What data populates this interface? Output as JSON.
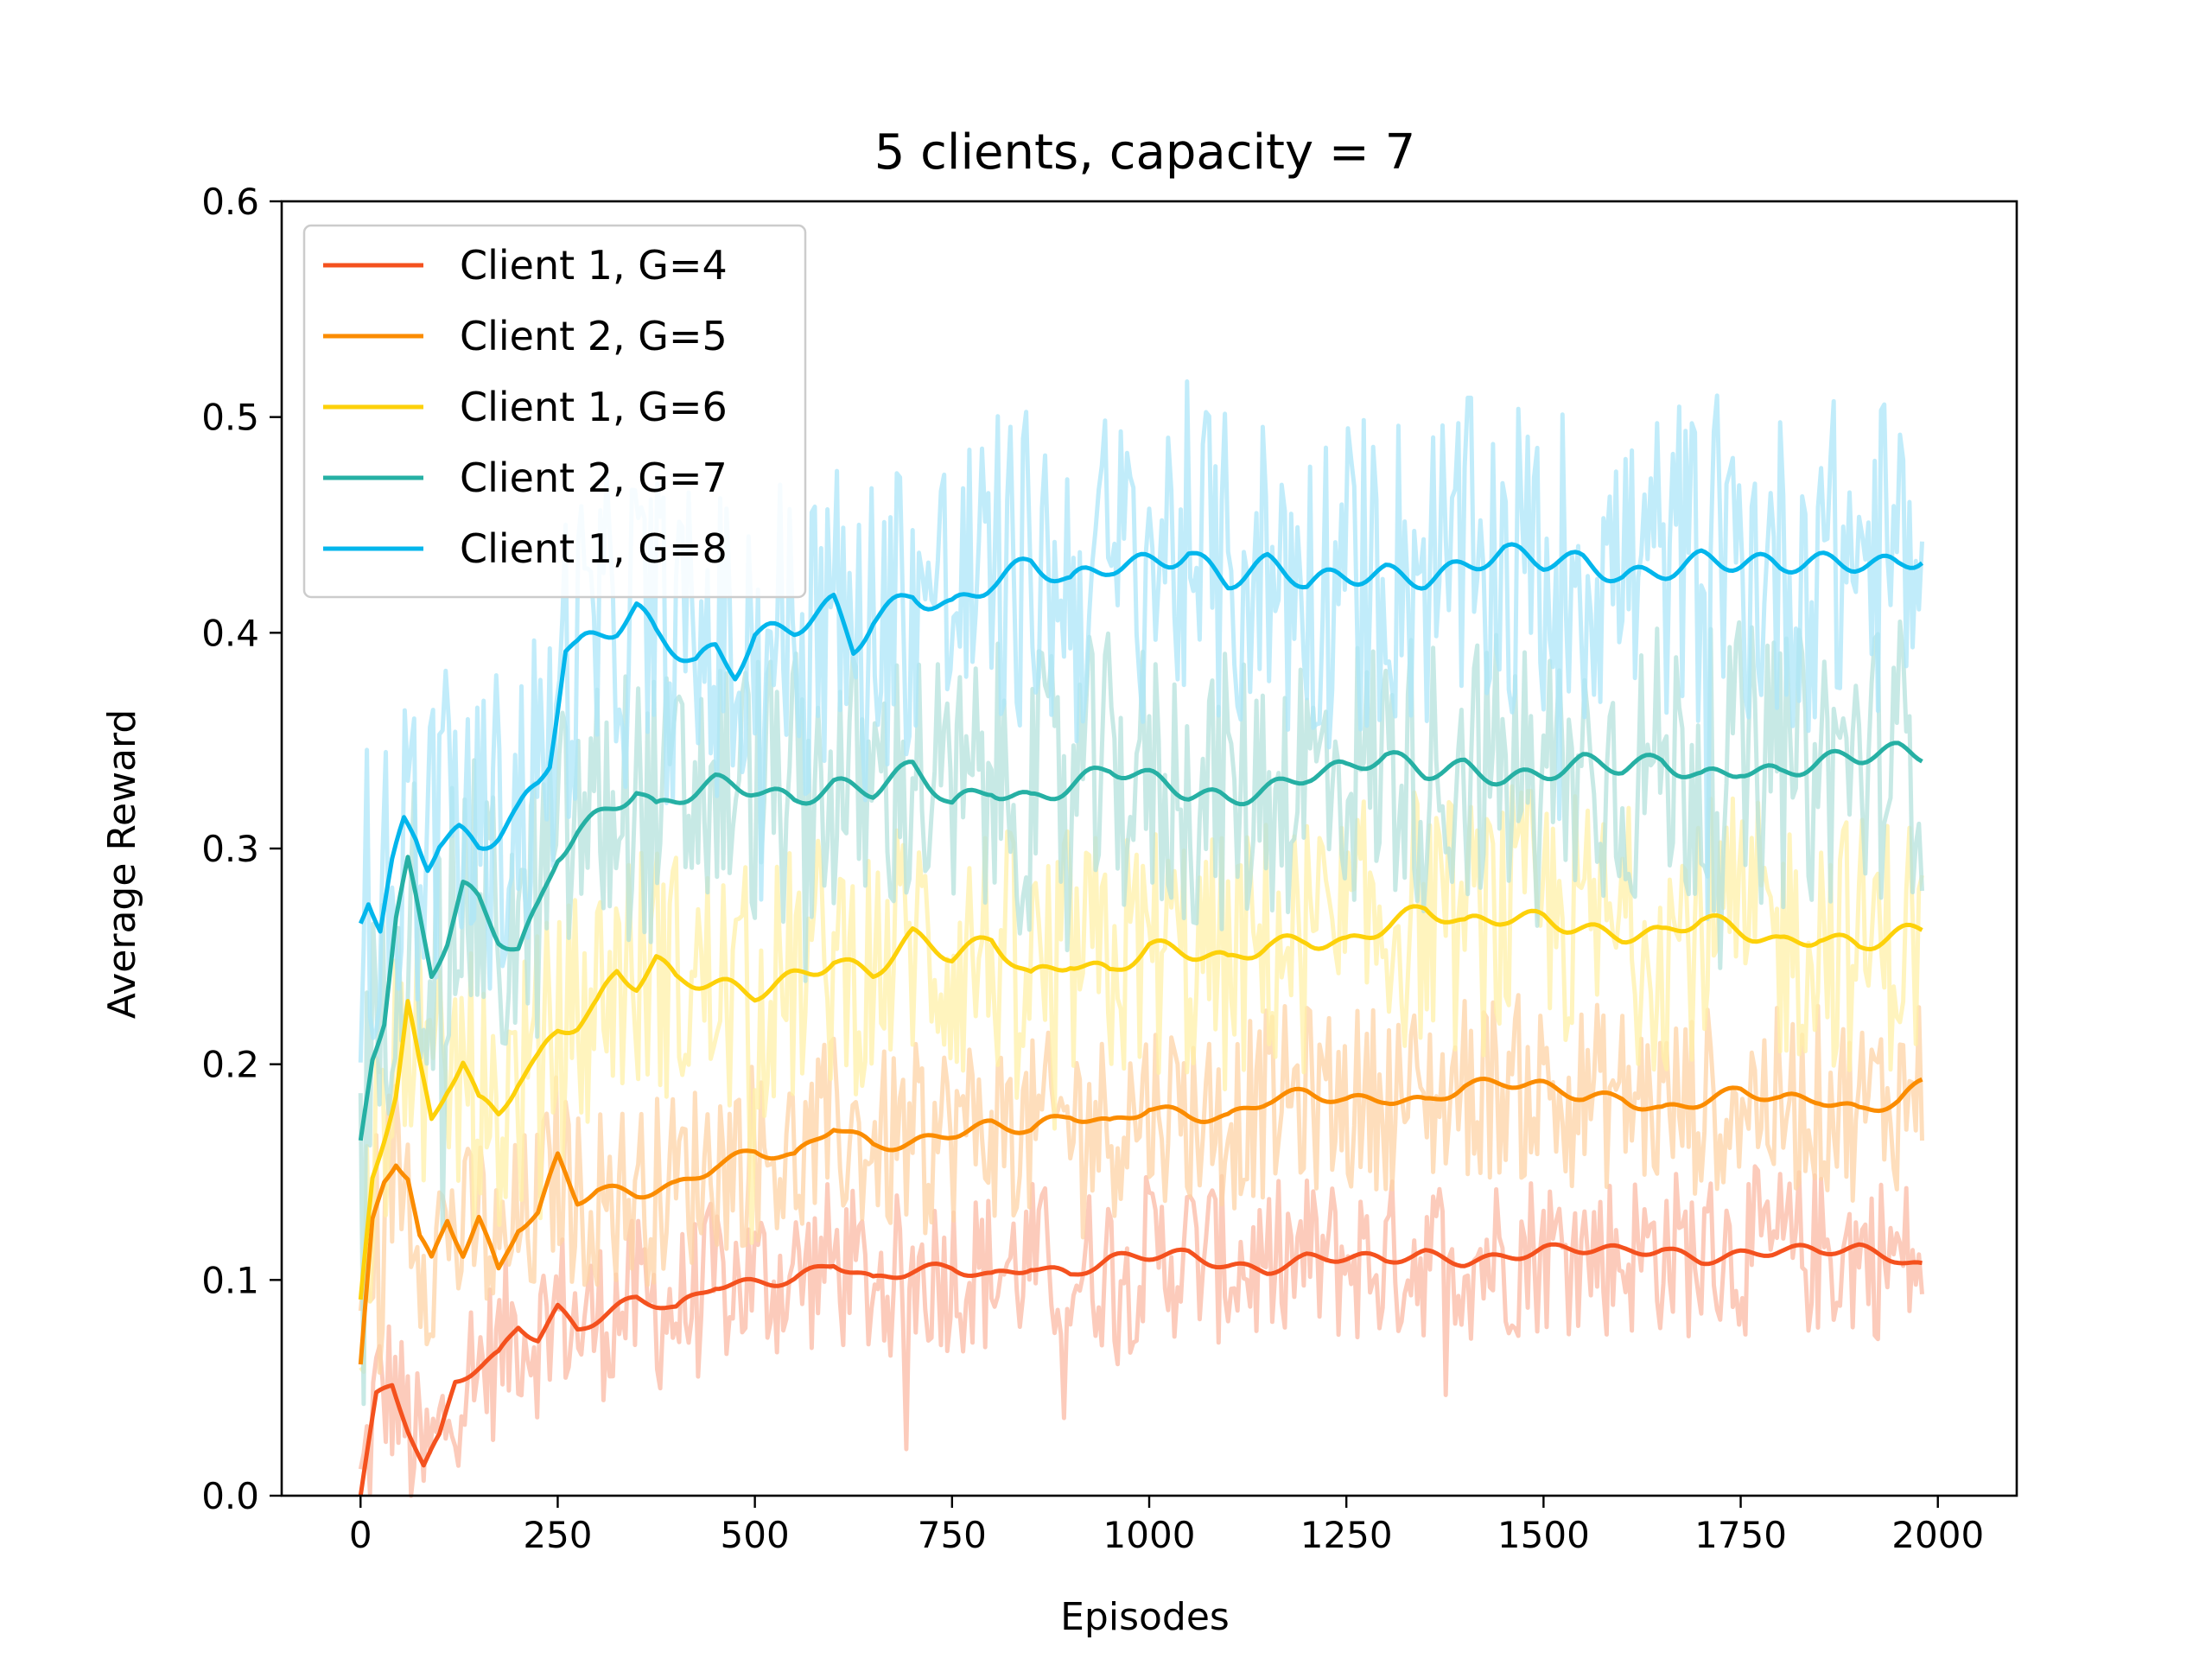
{
  "chart_data": {
    "type": "line",
    "title": "5 clients, capacity = 7",
    "xlabel": "Episodes",
    "ylabel": "Average Reward",
    "xlim": [
      -100,
      2100
    ],
    "ylim": [
      0.0,
      0.6
    ],
    "xticks": [
      0,
      250,
      500,
      750,
      1000,
      1250,
      1500,
      1750,
      2000
    ],
    "xtick_labels": [
      "0",
      "250",
      "500",
      "750",
      "1000",
      "1250",
      "1500",
      "1750",
      "2000"
    ],
    "yticks": [
      0.0,
      0.1,
      0.2,
      0.3,
      0.4,
      0.5,
      0.6
    ],
    "ytick_labels": [
      "0.0",
      "0.1",
      "0.2",
      "0.3",
      "0.4",
      "0.5",
      "0.6"
    ],
    "legend_position": "upper-left",
    "series": [
      {
        "name": "Client 1, G=4",
        "color": "#f4511e",
        "band_color": "#fbb9a4",
        "noise": 0.018,
        "x": [
          0,
          20,
          40,
          60,
          80,
          100,
          120,
          150,
          175,
          200,
          225,
          250,
          275,
          300,
          350,
          400,
          450,
          500,
          550,
          600,
          650,
          700,
          750,
          800,
          850,
          900,
          950,
          1000,
          1050,
          1100,
          1150,
          1200,
          1250,
          1300,
          1350,
          1400,
          1450,
          1500,
          1550,
          1600,
          1650,
          1700,
          1750,
          1800,
          1850,
          1900,
          1950,
          1980
        ],
        "y": [
          0.0,
          0.045,
          0.05,
          0.03,
          0.012,
          0.025,
          0.052,
          0.06,
          0.066,
          0.08,
          0.075,
          0.088,
          0.078,
          0.082,
          0.09,
          0.085,
          0.098,
          0.1,
          0.102,
          0.108,
          0.098,
          0.103,
          0.106,
          0.103,
          0.108,
          0.102,
          0.108,
          0.11,
          0.112,
          0.108,
          0.106,
          0.11,
          0.109,
          0.108,
          0.112,
          0.11,
          0.112,
          0.114,
          0.113,
          0.112,
          0.114,
          0.111,
          0.113,
          0.114,
          0.112,
          0.113,
          0.11,
          0.107
        ]
      },
      {
        "name": "Client 2, G=5",
        "color": "#fb8c00",
        "band_color": "#fdd3a6",
        "noise": 0.02,
        "x": [
          0,
          15,
          30,
          45,
          60,
          75,
          90,
          110,
          130,
          150,
          175,
          200,
          225,
          250,
          275,
          300,
          350,
          400,
          450,
          500,
          550,
          600,
          650,
          700,
          750,
          800,
          850,
          900,
          950,
          1000,
          1050,
          1100,
          1150,
          1200,
          1250,
          1300,
          1350,
          1400,
          1450,
          1500,
          1550,
          1600,
          1650,
          1700,
          1750,
          1800,
          1850,
          1900,
          1950,
          1980
        ],
        "y": [
          0.057,
          0.125,
          0.145,
          0.155,
          0.148,
          0.12,
          0.11,
          0.13,
          0.115,
          0.13,
          0.105,
          0.125,
          0.13,
          0.155,
          0.135,
          0.14,
          0.14,
          0.145,
          0.155,
          0.16,
          0.155,
          0.17,
          0.162,
          0.165,
          0.17,
          0.172,
          0.168,
          0.175,
          0.172,
          0.182,
          0.178,
          0.175,
          0.182,
          0.185,
          0.183,
          0.186,
          0.184,
          0.19,
          0.19,
          0.188,
          0.185,
          0.186,
          0.18,
          0.183,
          0.186,
          0.182,
          0.184,
          0.18,
          0.185,
          0.192
        ]
      },
      {
        "name": "Client 1, G=6",
        "color": "#fdd10a",
        "band_color": "#fff0a8",
        "noise": 0.028,
        "x": [
          0,
          15,
          30,
          45,
          60,
          75,
          90,
          110,
          130,
          150,
          175,
          200,
          225,
          250,
          275,
          300,
          325,
          350,
          375,
          400,
          450,
          500,
          550,
          600,
          650,
          700,
          750,
          800,
          850,
          900,
          950,
          1000,
          1050,
          1100,
          1150,
          1200,
          1250,
          1300,
          1350,
          1400,
          1450,
          1500,
          1550,
          1600,
          1650,
          1700,
          1750,
          1800,
          1850,
          1900,
          1950,
          1980
        ],
        "y": [
          0.09,
          0.15,
          0.17,
          0.19,
          0.23,
          0.2,
          0.175,
          0.19,
          0.2,
          0.18,
          0.175,
          0.19,
          0.2,
          0.215,
          0.22,
          0.23,
          0.245,
          0.24,
          0.25,
          0.24,
          0.235,
          0.23,
          0.24,
          0.25,
          0.245,
          0.26,
          0.248,
          0.255,
          0.24,
          0.25,
          0.245,
          0.255,
          0.25,
          0.245,
          0.255,
          0.26,
          0.258,
          0.265,
          0.27,
          0.262,
          0.268,
          0.27,
          0.265,
          0.26,
          0.258,
          0.265,
          0.262,
          0.258,
          0.262,
          0.255,
          0.258,
          0.26
        ]
      },
      {
        "name": "Client 2, G=7",
        "color": "#26b0a4",
        "band_color": "#b4e2dc",
        "noise": 0.03,
        "x": [
          0,
          15,
          30,
          45,
          60,
          75,
          90,
          110,
          130,
          150,
          175,
          200,
          225,
          250,
          275,
          300,
          325,
          350,
          375,
          400,
          450,
          500,
          550,
          600,
          650,
          700,
          750,
          800,
          850,
          900,
          950,
          1000,
          1050,
          1100,
          1150,
          1200,
          1250,
          1300,
          1350,
          1400,
          1450,
          1500,
          1550,
          1600,
          1650,
          1700,
          1750,
          1800,
          1850,
          1900,
          1950,
          1980
        ],
        "y": [
          0.165,
          0.205,
          0.22,
          0.265,
          0.29,
          0.265,
          0.24,
          0.255,
          0.28,
          0.275,
          0.26,
          0.255,
          0.275,
          0.3,
          0.31,
          0.315,
          0.32,
          0.325,
          0.315,
          0.32,
          0.33,
          0.33,
          0.325,
          0.33,
          0.325,
          0.335,
          0.32,
          0.33,
          0.325,
          0.33,
          0.335,
          0.33,
          0.325,
          0.325,
          0.33,
          0.335,
          0.335,
          0.34,
          0.335,
          0.34,
          0.335,
          0.335,
          0.338,
          0.335,
          0.34,
          0.335,
          0.34,
          0.335,
          0.338,
          0.34,
          0.345,
          0.345
        ]
      },
      {
        "name": "Client 1, G=8",
        "color": "#03b6ec",
        "band_color": "#ace6f8",
        "noise": 0.035,
        "x": [
          0,
          10,
          25,
          40,
          55,
          70,
          85,
          100,
          125,
          150,
          175,
          200,
          225,
          240,
          250,
          260,
          275,
          300,
          325,
          350,
          375,
          400,
          425,
          450,
          475,
          500,
          550,
          600,
          625,
          650,
          700,
          750,
          800,
          850,
          900,
          950,
          1000,
          1050,
          1100,
          1150,
          1200,
          1250,
          1300,
          1350,
          1400,
          1450,
          1500,
          1550,
          1600,
          1650,
          1700,
          1750,
          1800,
          1850,
          1900,
          1950,
          1980
        ],
        "y": [
          0.265,
          0.275,
          0.26,
          0.29,
          0.31,
          0.305,
          0.295,
          0.305,
          0.31,
          0.305,
          0.31,
          0.318,
          0.33,
          0.34,
          0.365,
          0.39,
          0.39,
          0.395,
          0.4,
          0.41,
          0.4,
          0.395,
          0.39,
          0.395,
          0.385,
          0.4,
          0.4,
          0.41,
          0.39,
          0.405,
          0.42,
          0.415,
          0.425,
          0.43,
          0.42,
          0.43,
          0.435,
          0.44,
          0.425,
          0.43,
          0.42,
          0.425,
          0.43,
          0.428,
          0.432,
          0.435,
          0.43,
          0.432,
          0.428,
          0.432,
          0.435,
          0.43,
          0.428,
          0.432,
          0.435,
          0.435,
          0.438
        ]
      }
    ]
  }
}
